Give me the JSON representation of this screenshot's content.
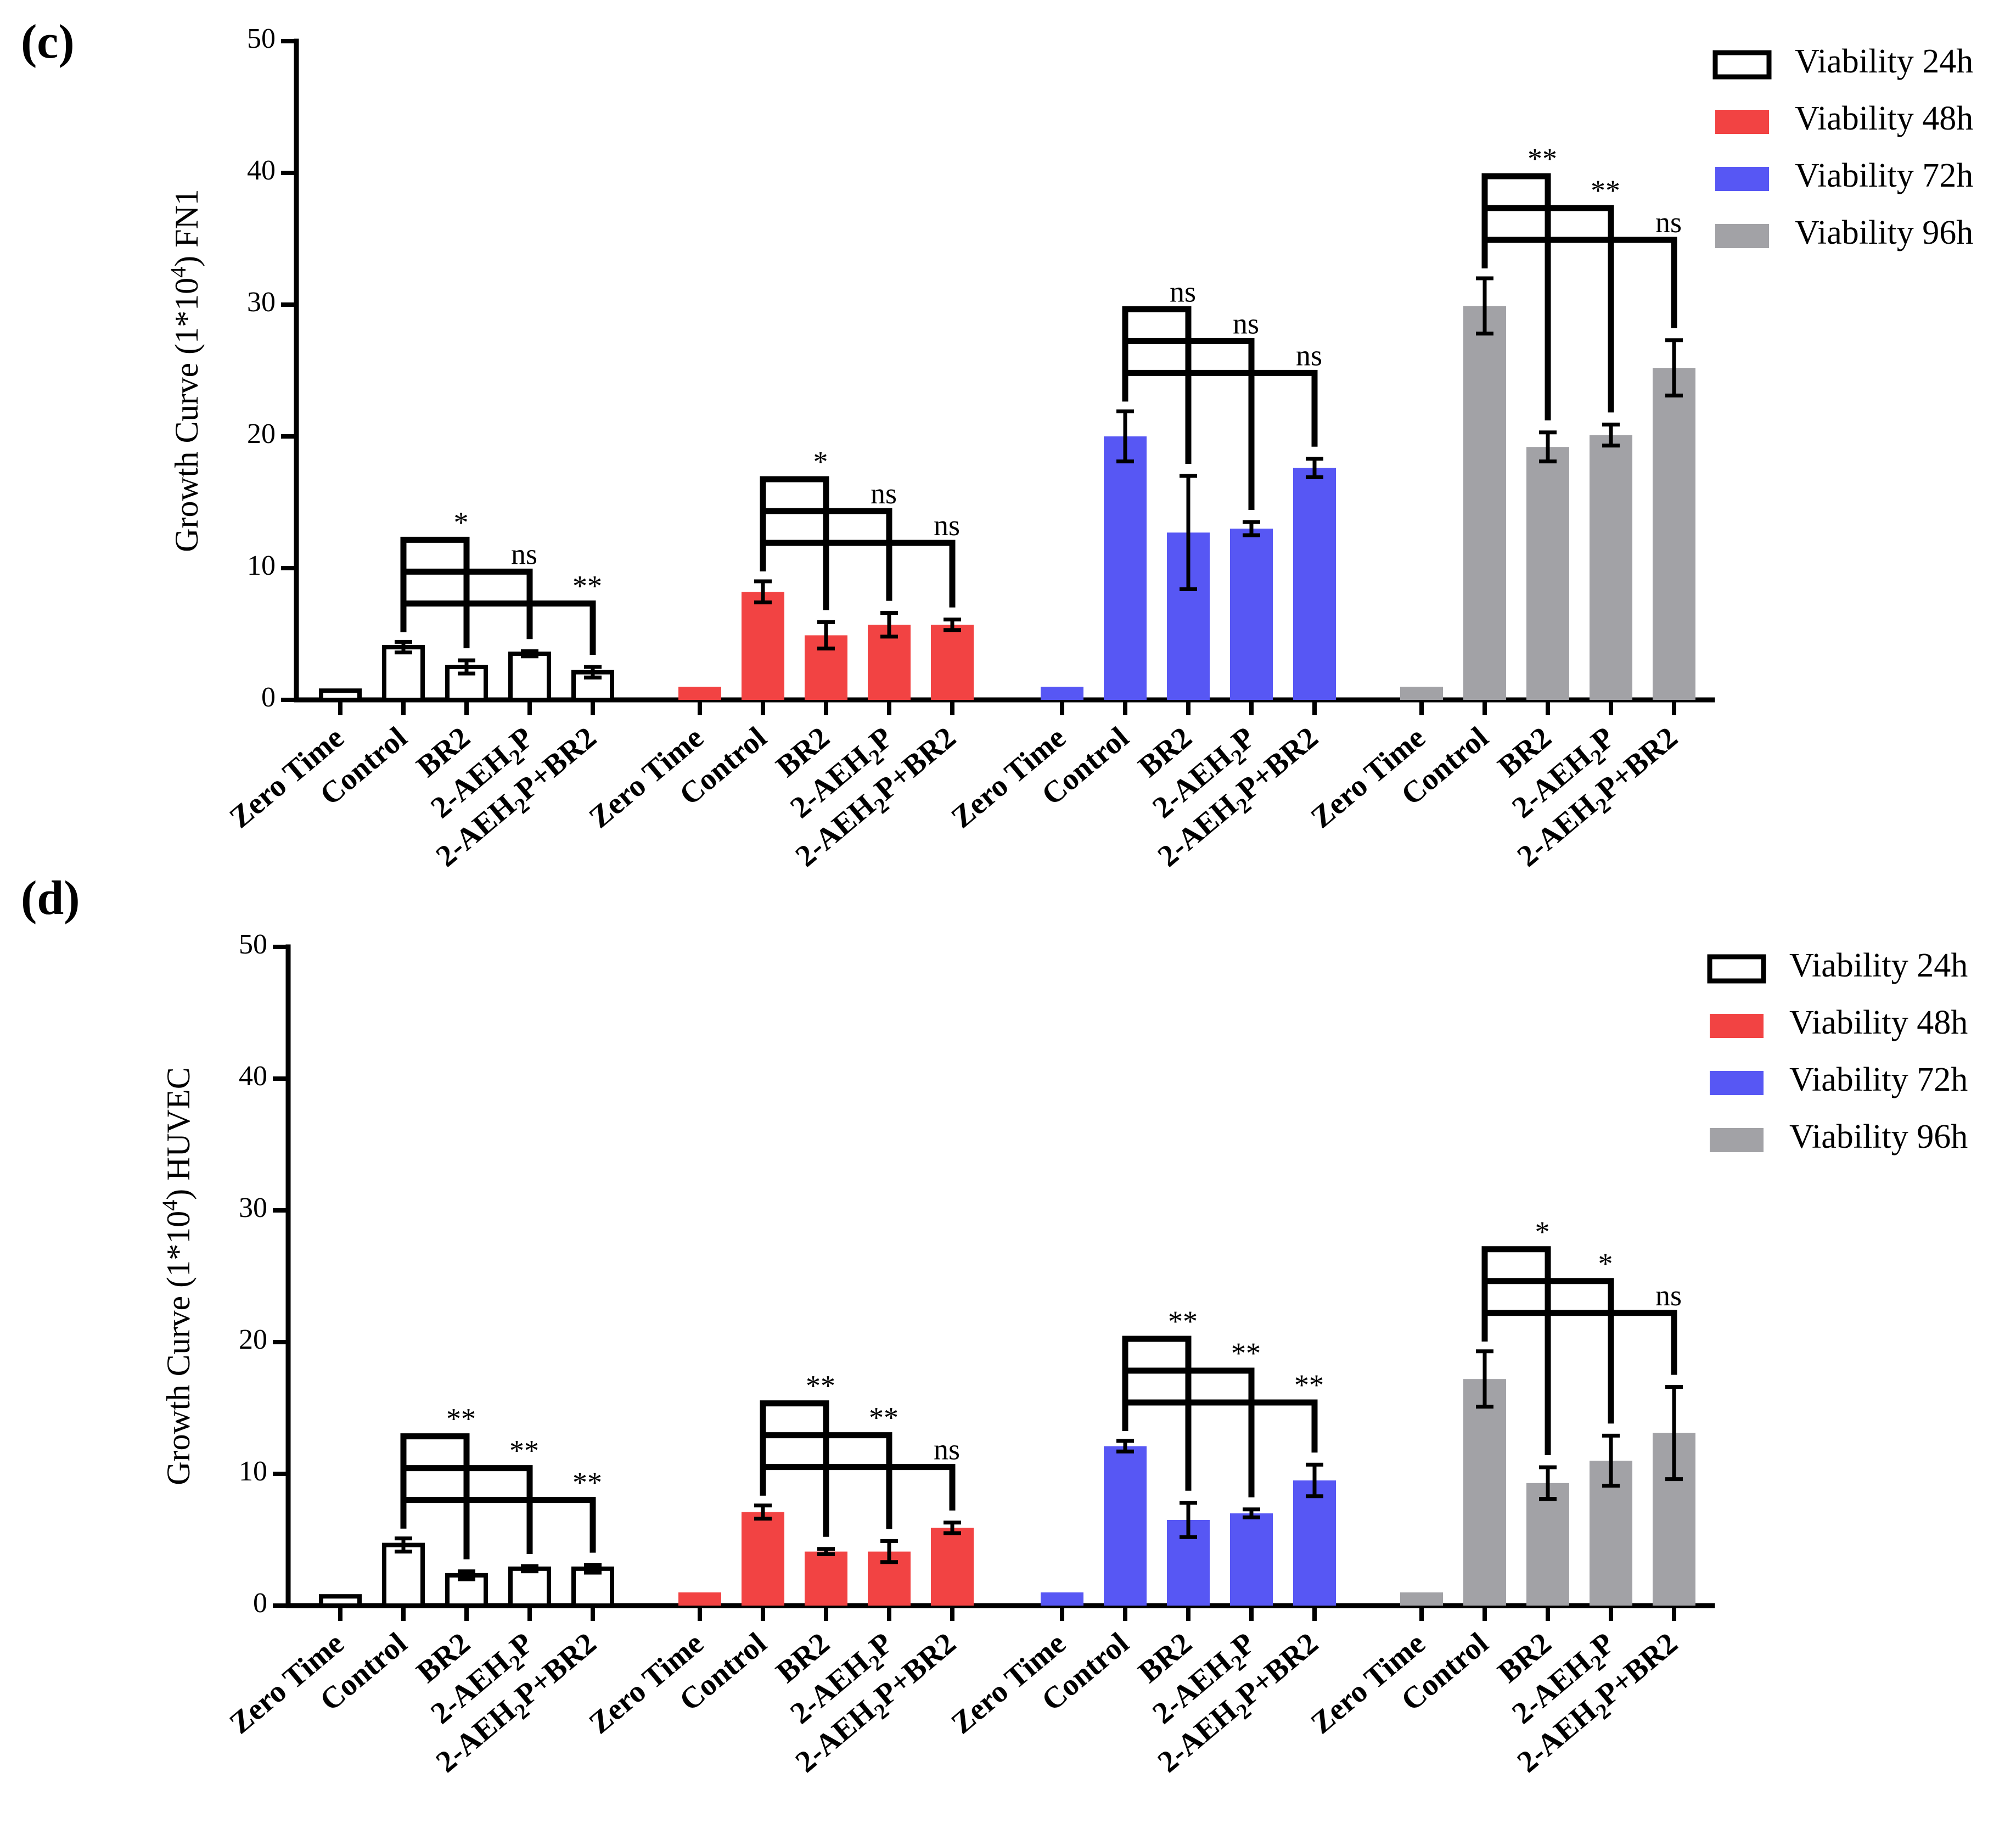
{
  "chart_data": [
    {
      "type": "bar",
      "panel_label": "(c)",
      "ylabel_prefix": "Growth Curve (1*10",
      "ylabel_exp": "4",
      "ylabel_suffix": ") FN1",
      "ylim": [
        0,
        50
      ],
      "yticks": [
        0,
        10,
        20,
        30,
        40,
        50
      ],
      "legend_position": "top-right",
      "categories": [
        "Zero Time",
        "Control",
        "BR2",
        "2-AEH2P",
        "2-AEH2P+BR2"
      ],
      "series": [
        {
          "name": "Viability 24h",
          "fill": "#ffffff",
          "stroke": "#000000",
          "values": [
            0.7,
            4.0,
            2.5,
            3.5,
            2.1
          ],
          "errors": [
            0,
            0.4,
            0.5,
            0.2,
            0.4
          ],
          "brackets": [
            {
              "to": 2,
              "label": "*"
            },
            {
              "to": 3,
              "label": "ns"
            },
            {
              "to": 4,
              "label": "**"
            }
          ]
        },
        {
          "name": "Viability 48h",
          "fill": "#f24343",
          "stroke": "none",
          "values": [
            1.0,
            8.2,
            4.9,
            5.7,
            5.7
          ],
          "errors": [
            0,
            0.8,
            1.0,
            0.9,
            0.4
          ],
          "brackets": [
            {
              "to": 2,
              "label": "*"
            },
            {
              "to": 3,
              "label": "ns"
            },
            {
              "to": 4,
              "label": "ns"
            }
          ]
        },
        {
          "name": "Viability 72h",
          "fill": "#5757f4",
          "stroke": "none",
          "values": [
            1.0,
            20.0,
            12.7,
            13.0,
            17.6
          ],
          "errors": [
            0,
            1.9,
            4.3,
            0.5,
            0.7
          ],
          "brackets": [
            {
              "to": 2,
              "label": "ns"
            },
            {
              "to": 3,
              "label": "ns"
            },
            {
              "to": 4,
              "label": "ns"
            }
          ]
        },
        {
          "name": "Viability 96h",
          "fill": "#a2a2a6",
          "stroke": "none",
          "values": [
            1.0,
            29.9,
            19.2,
            20.1,
            25.2
          ],
          "errors": [
            0,
            2.1,
            1.1,
            0.8,
            2.1
          ],
          "brackets": [
            {
              "to": 2,
              "label": "**"
            },
            {
              "to": 3,
              "label": "**"
            },
            {
              "to": 4,
              "label": "ns"
            }
          ]
        }
      ]
    },
    {
      "type": "bar",
      "panel_label": "(d)",
      "ylabel_prefix": "Growth Curve (1*10",
      "ylabel_exp": "4",
      "ylabel_suffix": ") HUVEC",
      "ylim": [
        0,
        50
      ],
      "yticks": [
        0,
        10,
        20,
        30,
        40,
        50
      ],
      "legend_position": "top-right",
      "categories": [
        "Zero Time",
        "Control",
        "BR2",
        "2-AEH2P",
        "2-AEH2P+BR2"
      ],
      "series": [
        {
          "name": "Viability 24h",
          "fill": "#ffffff",
          "stroke": "#000000",
          "values": [
            0.7,
            4.6,
            2.3,
            2.8,
            2.8
          ],
          "errors": [
            0,
            0.5,
            0.3,
            0.2,
            0.3
          ],
          "brackets": [
            {
              "to": 2,
              "label": "**"
            },
            {
              "to": 3,
              "label": "**"
            },
            {
              "to": 4,
              "label": "**"
            }
          ]
        },
        {
          "name": "Viability 48h",
          "fill": "#f24343",
          "stroke": "none",
          "values": [
            1.0,
            7.1,
            4.1,
            4.1,
            5.9
          ],
          "errors": [
            0,
            0.5,
            0.2,
            0.8,
            0.4
          ],
          "brackets": [
            {
              "to": 2,
              "label": "**"
            },
            {
              "to": 3,
              "label": "**"
            },
            {
              "to": 4,
              "label": "ns"
            }
          ]
        },
        {
          "name": "Viability 72h",
          "fill": "#5757f4",
          "stroke": "none",
          "values": [
            1.0,
            12.1,
            6.5,
            7.0,
            9.5
          ],
          "errors": [
            0,
            0.4,
            1.3,
            0.3,
            1.2
          ],
          "brackets": [
            {
              "to": 2,
              "label": "**"
            },
            {
              "to": 3,
              "label": "**"
            },
            {
              "to": 4,
              "label": "**"
            }
          ]
        },
        {
          "name": "Viability 96h",
          "fill": "#a2a2a6",
          "stroke": "none",
          "values": [
            1.0,
            17.2,
            9.3,
            11.0,
            13.1
          ],
          "errors": [
            0,
            2.1,
            1.2,
            1.9,
            3.5
          ],
          "brackets": [
            {
              "to": 2,
              "label": "*"
            },
            {
              "to": 3,
              "label": "*"
            },
            {
              "to": 4,
              "label": "ns"
            }
          ]
        }
      ]
    }
  ]
}
